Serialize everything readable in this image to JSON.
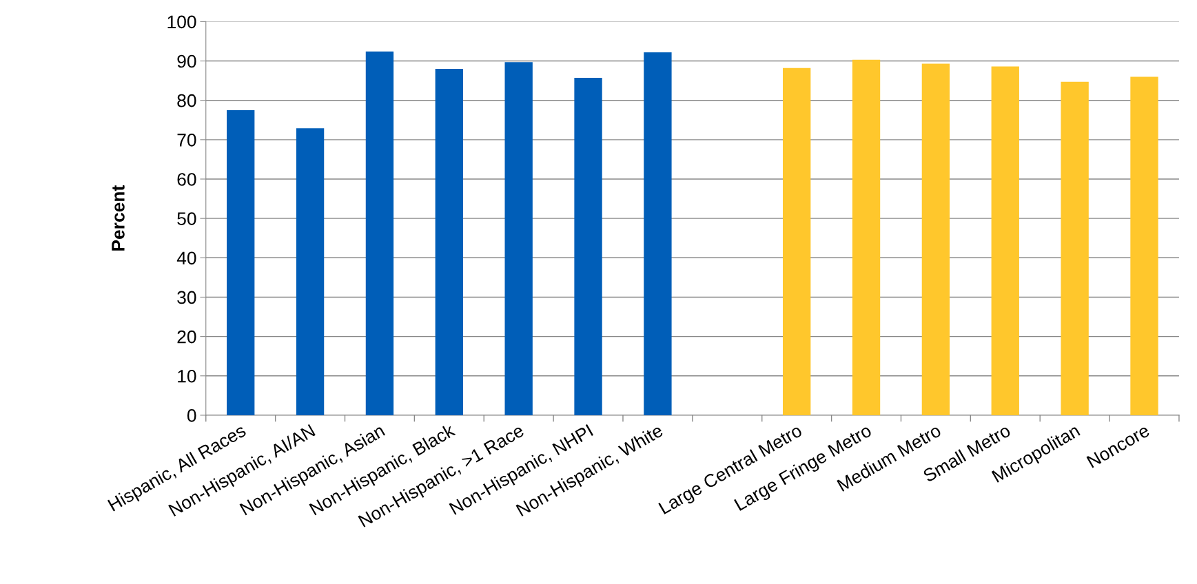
{
  "chart_data": {
    "type": "bar",
    "ylabel": "Percent",
    "categories": [
      "Hispanic, All Races",
      "Non-Hispanic, AI/AN",
      "Non-Hispanic, Asian",
      "Non-Hispanic, Black",
      "Non-Hispanic, >1 Race",
      "Non-Hispanic, NHPI",
      "Non-Hispanic, White",
      null,
      "Large Central Metro",
      "Large Fringe Metro",
      "Medium Metro",
      "Small Metro",
      "Micropolitan",
      "Noncore"
    ],
    "values": [
      77.5,
      72.9,
      92.4,
      88.0,
      89.7,
      85.7,
      92.2,
      null,
      88.2,
      90.3,
      89.3,
      88.6,
      84.7,
      86.0
    ],
    "colors": [
      "#005eb8",
      "#005eb8",
      "#005eb8",
      "#005eb8",
      "#005eb8",
      "#005eb8",
      "#005eb8",
      "#ffffff",
      "#ffc72c",
      "#ffc72c",
      "#ffc72c",
      "#ffc72c",
      "#ffc72c",
      "#ffc72c"
    ],
    "ylim": [
      0,
      100
    ],
    "yticks": [
      0,
      10,
      20,
      30,
      40,
      50,
      60,
      70,
      80,
      90,
      100
    ],
    "grid": "y"
  }
}
